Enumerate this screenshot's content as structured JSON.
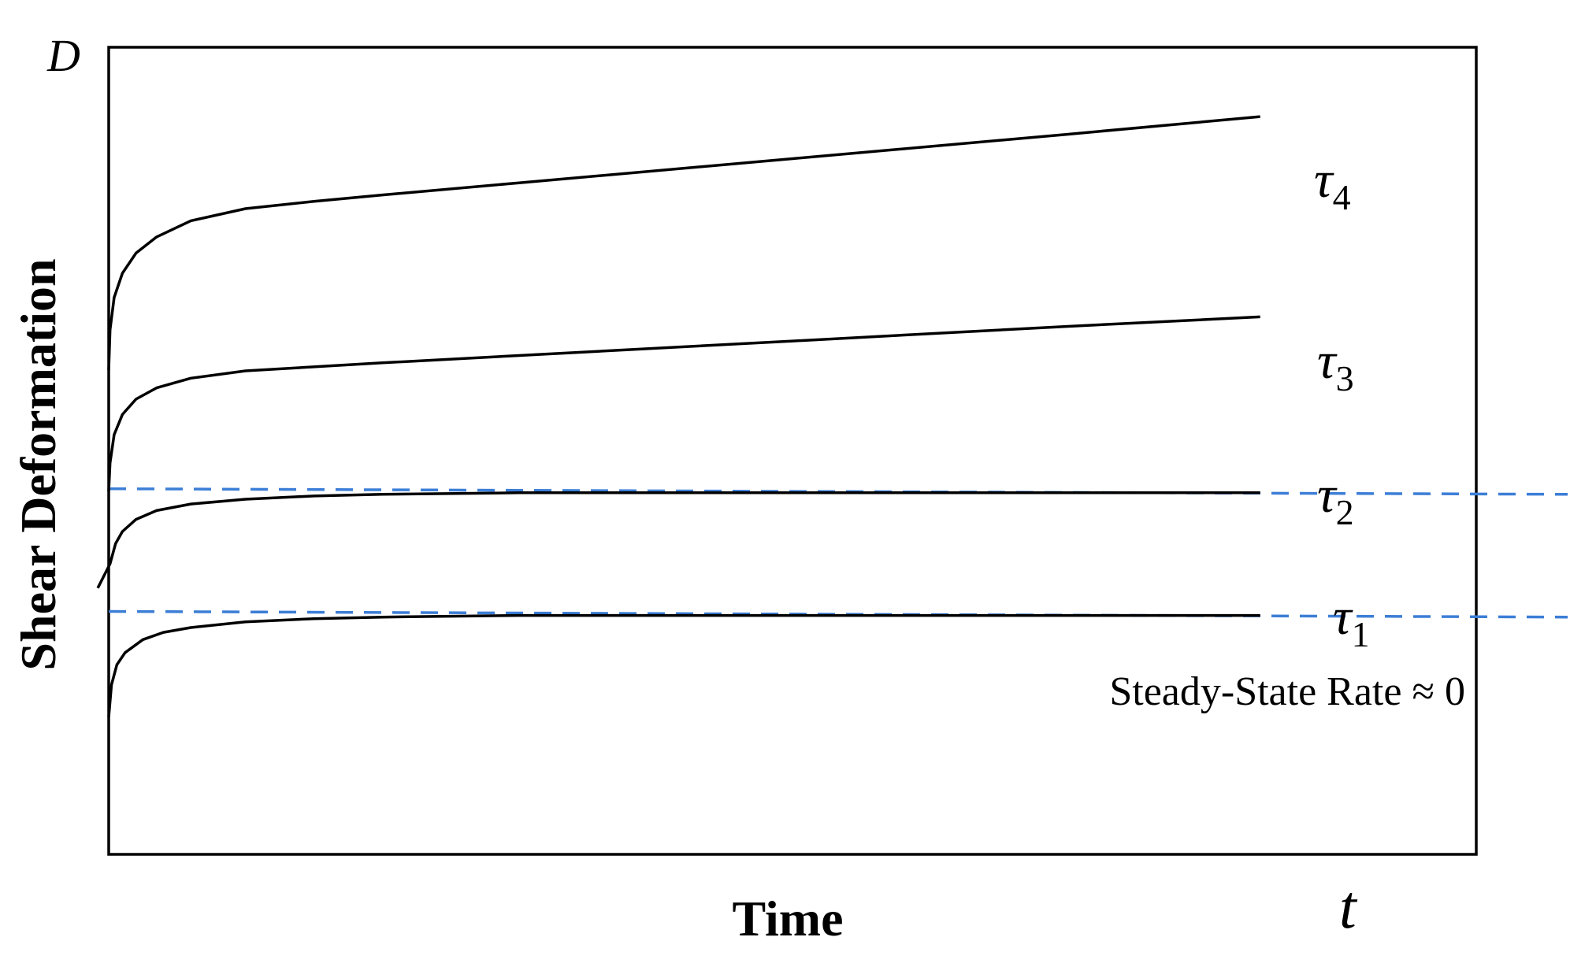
{
  "chart_data": {
    "type": "line",
    "xlabel": "Time",
    "ylabel": "Shear Deformation",
    "x_axis_symbol": "t",
    "y_axis_symbol": "D",
    "grid": false,
    "xlim": [
      0,
      100
    ],
    "ylim": [
      0,
      100
    ],
    "series": [
      {
        "name": "τ4",
        "symbol": "τ",
        "subscript": "4",
        "color": "#000000",
        "points": [
          [
            0,
            60
          ],
          [
            0.1,
            65
          ],
          [
            0.4,
            69
          ],
          [
            1,
            72
          ],
          [
            2,
            74.5
          ],
          [
            3.5,
            76.5
          ],
          [
            6,
            78.5
          ],
          [
            10,
            80
          ],
          [
            15,
            80.9
          ],
          [
            20,
            81.7
          ],
          [
            30,
            83.2
          ],
          [
            50,
            86.2
          ],
          [
            70,
            89.2
          ],
          [
            84.2,
            91.4
          ]
        ]
      },
      {
        "name": "τ3",
        "symbol": "τ",
        "subscript": "3",
        "color": "#000000",
        "points": [
          [
            0,
            45
          ],
          [
            0.1,
            48.5
          ],
          [
            0.4,
            52
          ],
          [
            1,
            54.5
          ],
          [
            2,
            56.4
          ],
          [
            3.5,
            57.8
          ],
          [
            6,
            59
          ],
          [
            10,
            59.9
          ],
          [
            15,
            60.4
          ],
          [
            20,
            60.9
          ],
          [
            30,
            61.8
          ],
          [
            50,
            63.6
          ],
          [
            70,
            65.4
          ],
          [
            84.2,
            66.6
          ]
        ]
      },
      {
        "name": "τ2",
        "symbol": "τ",
        "subscript": "2",
        "color": "#000000",
        "points": [
          [
            -0.8,
            33
          ],
          [
            0.1,
            36
          ],
          [
            0.5,
            38.5
          ],
          [
            1,
            40
          ],
          [
            2,
            41.5
          ],
          [
            3.5,
            42.6
          ],
          [
            6,
            43.4
          ],
          [
            10,
            44
          ],
          [
            15,
            44.4
          ],
          [
            20,
            44.6
          ],
          [
            30,
            44.8
          ],
          [
            45,
            44.8
          ],
          [
            84.2,
            44.8
          ]
        ]
      },
      {
        "name": "τ1",
        "symbol": "τ",
        "subscript": "1",
        "color": "#000000",
        "points": [
          [
            0,
            17
          ],
          [
            0.2,
            21
          ],
          [
            0.6,
            23.5
          ],
          [
            1.2,
            25
          ],
          [
            2.5,
            26.6
          ],
          [
            4,
            27.5
          ],
          [
            6,
            28.1
          ],
          [
            10,
            28.8
          ],
          [
            15,
            29.2
          ],
          [
            20,
            29.4
          ],
          [
            30,
            29.6
          ],
          [
            45,
            29.6
          ],
          [
            84.2,
            29.6
          ]
        ]
      }
    ],
    "reference_lines": [
      {
        "style": "dashed",
        "color": "#3c7ed6",
        "y_start": 45.3,
        "y_end": 44.6
      },
      {
        "style": "dashed",
        "color": "#3c7ed6",
        "y_start": 30.1,
        "y_end": 29.4
      }
    ],
    "annotation": "Steady-State Rate ≈ 0"
  }
}
